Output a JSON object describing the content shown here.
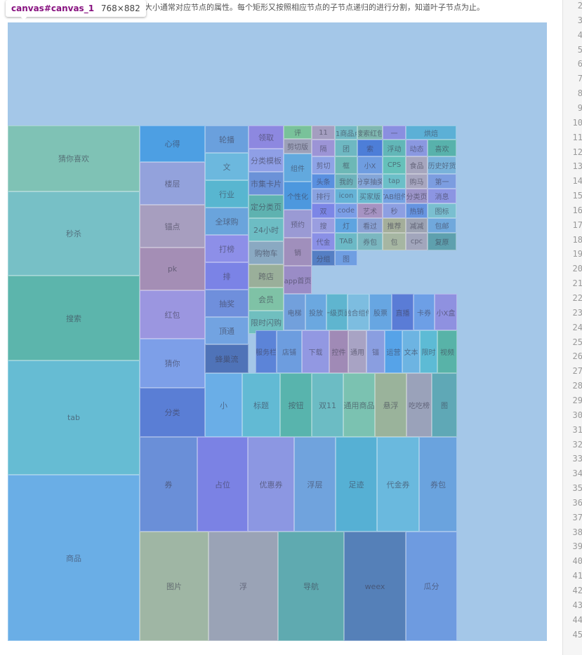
{
  "description_text": "大小通常对应节点的属性。每个矩形又按照相应节点的子节点递归的进行分割，知道叶子节点为止。",
  "tooltip": {
    "tag": "canvas#canvas_1",
    "dims": "768×882"
  },
  "line_numbers": [
    "2",
    "3",
    "4",
    "5",
    "6",
    "7",
    "8",
    "9",
    "10",
    "11",
    "12",
    "13",
    "14",
    "15",
    "16",
    "17",
    "18",
    "19",
    "20",
    "21",
    "22",
    "23",
    "24",
    "25",
    "26",
    "27",
    "28",
    "29",
    "30",
    "31",
    "32",
    "33",
    "34",
    "35",
    "36",
    "37",
    "38",
    "39",
    "40",
    "41",
    "42",
    "43",
    "44",
    "45"
  ],
  "chart_data": {
    "type": "treemap",
    "title": "",
    "nodes": [
      {
        "label": "猜你喜欢",
        "color": "#7fc2b5"
      },
      {
        "label": "秒杀",
        "color": "#77c0c6"
      },
      {
        "label": "搜索",
        "color": "#5cb5ac"
      },
      {
        "label": "tab",
        "color": "#66bcd3"
      },
      {
        "label": "商品",
        "color": "#6aaee6"
      },
      {
        "label": "心得",
        "color": "#4d9fe3"
      },
      {
        "label": "楼层",
        "color": "#93a2dc"
      },
      {
        "label": "锚点",
        "color": "#a79ebf"
      },
      {
        "label": "pk",
        "color": "#a48eb5"
      },
      {
        "label": "红包",
        "color": "#9b96e0"
      },
      {
        "label": "猜你",
        "color": "#7d9fe8"
      },
      {
        "label": "分类",
        "color": "#5a7ed5"
      },
      {
        "label": "轮播",
        "color": "#6aa0dd"
      },
      {
        "label": "文",
        "color": "#6cb8de"
      },
      {
        "label": "行业",
        "color": "#58b6d0"
      },
      {
        "label": "全球购",
        "color": "#6aa4dc"
      },
      {
        "label": "打榜",
        "color": "#8d8fe8"
      },
      {
        "label": "排",
        "color": "#7b83e6"
      },
      {
        "label": "抽奖",
        "color": "#6f8fdc"
      },
      {
        "label": "頂通",
        "color": "#72a3e1"
      },
      {
        "label": "蜂巢流",
        "color": "#4f73b8"
      },
      {
        "label": "领取",
        "color": "#8d88e0"
      },
      {
        "label": "分类模板",
        "color": "#8f9fe6"
      },
      {
        "label": "市集卡片",
        "color": "#6b92d8"
      },
      {
        "label": "定分类页",
        "color": "#5eb2b0"
      },
      {
        "label": "24小时",
        "color": "#6dbdc4"
      },
      {
        "label": "购物车",
        "color": "#8aa9c2"
      },
      {
        "label": "跨店",
        "color": "#9aaf9a"
      },
      {
        "label": "会员",
        "color": "#7fc2a6"
      },
      {
        "label": "限时闪购",
        "color": "#70bfbf"
      },
      {
        "label": "评",
        "color": "#79c29a"
      },
      {
        "label": "剪切版",
        "color": "#9ca0b8"
      },
      {
        "label": "组件",
        "color": "#62a9de"
      },
      {
        "label": "个性化",
        "color": "#4d98de"
      },
      {
        "label": "预约",
        "color": "#9a9ad4"
      },
      {
        "label": "销",
        "color": "#a08fbc"
      },
      {
        "label": "app首页",
        "color": "#9a8cc6"
      },
      {
        "label": "电梯",
        "color": "#72a0dc"
      },
      {
        "label": "投放",
        "color": "#6ba8e0"
      },
      {
        "label": "一级页面",
        "color": "#5fb5cf"
      },
      {
        "label": "融合组件",
        "color": "#7dbde0"
      },
      {
        "label": "股票",
        "color": "#67a6e2"
      },
      {
        "label": "直播",
        "color": "#5a7cd6"
      },
      {
        "label": "卡券",
        "color": "#6d9fe6"
      },
      {
        "label": "小X盒",
        "color": "#8f91e0"
      },
      {
        "label": "服务栏",
        "color": "#5c84d8"
      },
      {
        "label": "店铺",
        "color": "#6d9ddf"
      },
      {
        "label": "下载",
        "color": "#9298e2"
      },
      {
        "label": "控件",
        "color": "#a08ab6"
      },
      {
        "label": "通用",
        "color": "#a8a3c4"
      },
      {
        "label": "锚",
        "color": "#8a9ee0"
      },
      {
        "label": "运营",
        "color": "#56a3e8"
      },
      {
        "label": "文本",
        "color": "#6db4e2"
      },
      {
        "label": "限时",
        "color": "#5dbbd5"
      },
      {
        "label": "视频",
        "color": "#58b3a8"
      },
      {
        "label": "小",
        "color": "#6aaee7"
      },
      {
        "label": "标题",
        "color": "#62bad4"
      },
      {
        "label": "按钮",
        "color": "#58b4ad"
      },
      {
        "label": "双11",
        "color": "#6cbcc4"
      },
      {
        "label": "通用商品",
        "color": "#7bc2b1"
      },
      {
        "label": "悬浮",
        "color": "#9ab39b"
      },
      {
        "label": "吃吃榜",
        "color": "#9aa2ba"
      },
      {
        "label": "图",
        "color": "#5fa8b6"
      },
      {
        "label": "券",
        "color": "#6a8fd8"
      },
      {
        "label": "占位",
        "color": "#7b82e4"
      },
      {
        "label": "优惠券",
        "color": "#8c97e2"
      },
      {
        "label": "浮层",
        "color": "#70a3dd"
      },
      {
        "label": "足迹",
        "color": "#56b0d4"
      },
      {
        "label": "代金券",
        "color": "#6ab9de"
      },
      {
        "label": "券包",
        "color": "#6aa3de"
      },
      {
        "label": "图片",
        "color": "#9fb6a4"
      },
      {
        "label": "浮",
        "color": "#9aa3b6"
      },
      {
        "label": "导航",
        "color": "#5faab0"
      },
      {
        "label": "weex",
        "color": "#5580b8"
      },
      {
        "label": "瓜分",
        "color": "#6e9be0"
      },
      {
        "label": "11",
        "color": "#a49ec0"
      },
      {
        "label": "双11商品点赞",
        "color": "#73b9c4"
      },
      {
        "label": "搜索红包",
        "color": "#7fb7b0"
      },
      {
        "label": "一",
        "color": "#8a8fe0"
      },
      {
        "label": "烘焙",
        "color": "#5cb0d6"
      },
      {
        "label": "隔",
        "color": "#9c94d6"
      },
      {
        "label": "团",
        "color": "#6eb8c2"
      },
      {
        "label": "索",
        "color": "#4d7ed8"
      },
      {
        "label": "浮动",
        "color": "#62b7b8"
      },
      {
        "label": "动态",
        "color": "#8a98e0"
      },
      {
        "label": "喜欢",
        "color": "#58b2ac"
      },
      {
        "label": "剪切",
        "color": "#8ea3e6"
      },
      {
        "label": "框",
        "color": "#6db8b6"
      },
      {
        "label": "小X",
        "color": "#6f9de0"
      },
      {
        "label": "CPS",
        "color": "#65c1ba"
      },
      {
        "label": "食品",
        "color": "#a6a6be"
      },
      {
        "label": "历史好货",
        "color": "#79b2da"
      },
      {
        "label": "头条",
        "color": "#5a90e0"
      },
      {
        "label": "我的",
        "color": "#6eb3bc"
      },
      {
        "label": "分享抽奖",
        "color": "#84a6d8"
      },
      {
        "label": "tap",
        "color": "#6cbfc8"
      },
      {
        "label": "购马",
        "color": "#a7a6bf"
      },
      {
        "label": "第一",
        "color": "#7c9de0"
      },
      {
        "label": "排行",
        "color": "#89a2e0"
      },
      {
        "label": "icon",
        "color": "#65b3d6"
      },
      {
        "label": "买家版",
        "color": "#6bbad0"
      },
      {
        "label": "TAB组件",
        "color": "#75a2e2"
      },
      {
        "label": "分类页",
        "color": "#9c94c8"
      },
      {
        "label": "消息",
        "color": "#8c95e2"
      },
      {
        "label": "双",
        "color": "#7c86e6"
      },
      {
        "label": "code",
        "color": "#7b9ee6"
      },
      {
        "label": "艺术",
        "color": "#a693c2"
      },
      {
        "label": "秒",
        "color": "#8d9fe2"
      },
      {
        "label": "热销",
        "color": "#6694e0"
      },
      {
        "label": "图标",
        "color": "#7abfd0"
      },
      {
        "label": "搜",
        "color": "#9a9ee0"
      },
      {
        "label": "灯",
        "color": "#5ea4e0"
      },
      {
        "label": "看过",
        "color": "#8aa2d4"
      },
      {
        "label": "推荐",
        "color": "#a4ae9a"
      },
      {
        "label": "减减",
        "color": "#9ca2b2"
      },
      {
        "label": "包邮",
        "color": "#70a8dc"
      },
      {
        "label": "代金",
        "color": "#8a90e6"
      },
      {
        "label": "TAB",
        "color": "#6cb9c6"
      },
      {
        "label": "券包",
        "color": "#7bb7c0"
      },
      {
        "label": "包",
        "color": "#a6b6a2"
      },
      {
        "label": "cpc",
        "color": "#a2a6bc"
      },
      {
        "label": "复原",
        "color": "#5ea0ae"
      },
      {
        "label": "分组",
        "color": "#557fc4"
      },
      {
        "label": "图",
        "color": "#6f9ee2"
      }
    ]
  }
}
